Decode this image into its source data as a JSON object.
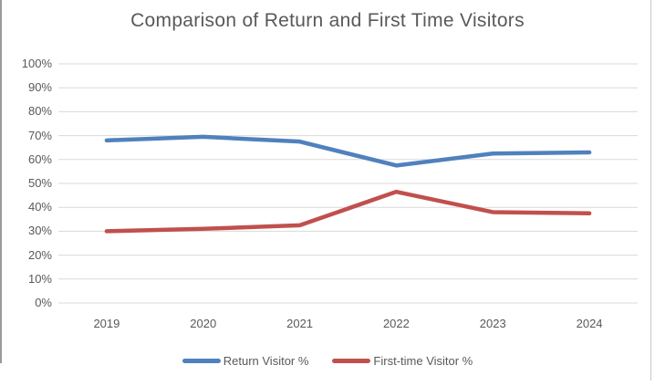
{
  "chart_data": {
    "type": "line",
    "title": "Comparison of Return and First Time Visitors",
    "categories": [
      "2019",
      "2020",
      "2021",
      "2022",
      "2023",
      "2024"
    ],
    "series": [
      {
        "name": "Return Visitor %",
        "color": "#4F81BD",
        "values": [
          68,
          69.5,
          67.5,
          57.5,
          62.5,
          63
        ]
      },
      {
        "name": "First-time Visitor %",
        "color": "#C0504D",
        "values": [
          30,
          31,
          32.5,
          46.5,
          38,
          37.5
        ]
      }
    ],
    "xlabel": "",
    "ylabel": "",
    "ylim": [
      0,
      100
    ],
    "ytick_step": 10,
    "ytick_labels": [
      "0%",
      "10%",
      "20%",
      "30%",
      "40%",
      "50%",
      "60%",
      "70%",
      "80%",
      "90%",
      "100%"
    ],
    "grid": true,
    "legend_position": "bottom",
    "colors": {
      "gridline": "#d9d9d9",
      "axis_text": "#595959",
      "title_text": "#595959",
      "background": "#ffffff"
    }
  }
}
